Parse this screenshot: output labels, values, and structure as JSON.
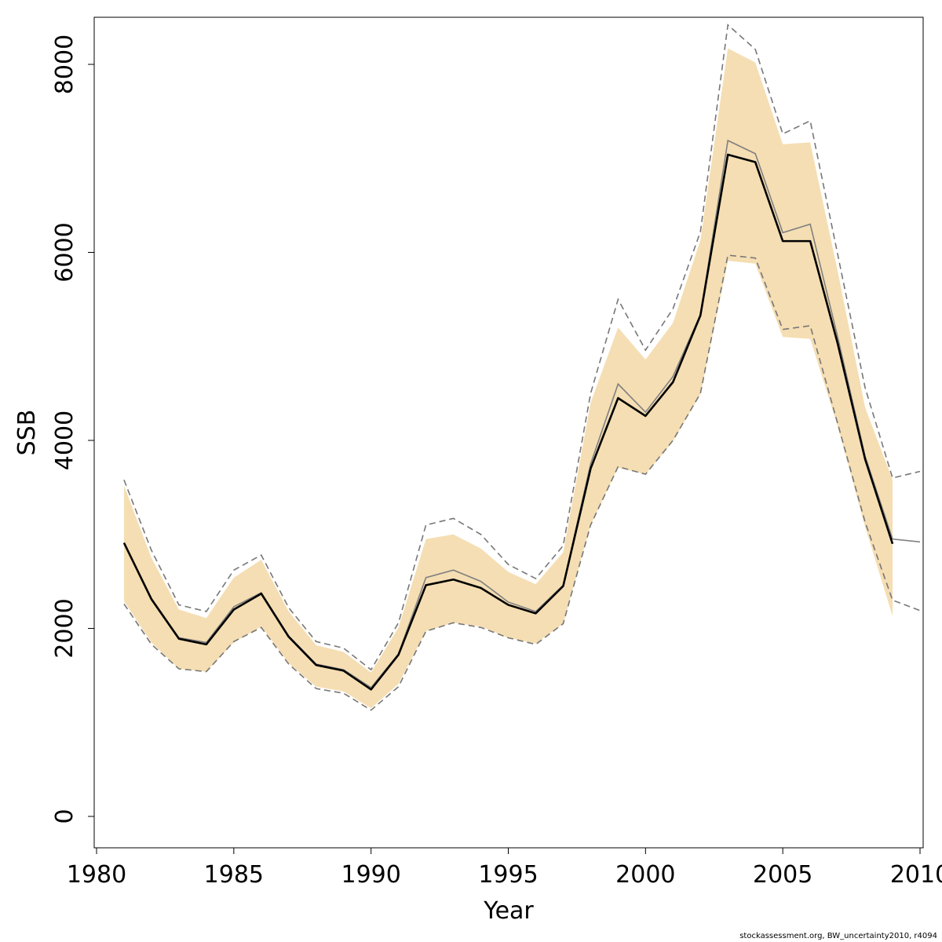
{
  "chart_data": {
    "type": "line",
    "title": "",
    "xlabel": "Year",
    "ylabel": "SSB",
    "xlim": [
      1980,
      2010
    ],
    "ylim": [
      0,
      8500
    ],
    "x_ticks": [
      1980,
      1985,
      1990,
      1995,
      2000,
      2005,
      2010
    ],
    "y_ticks": [
      0,
      2000,
      4000,
      6000,
      8000
    ],
    "x_tick_labels": [
      "1980",
      "1985",
      "1990",
      "1995",
      "2000",
      "2005",
      "2010"
    ],
    "y_tick_labels": [
      "0",
      "2000",
      "4000",
      "6000",
      "8000"
    ],
    "grid": false,
    "colors": {
      "band": "#f5deb3",
      "median": "#000000",
      "secondary": "#808080",
      "outer": "#777777"
    },
    "years": [
      1981,
      1982,
      1983,
      1984,
      1985,
      1986,
      1987,
      1988,
      1989,
      1990,
      1991,
      1992,
      1993,
      1994,
      1995,
      1996,
      1997,
      1998,
      1999,
      2000,
      2001,
      2002,
      2003,
      2004,
      2005,
      2006,
      2007,
      2008,
      2009
    ],
    "series": [
      {
        "role": "median",
        "values": [
          2910,
          2310,
          1890,
          1830,
          2200,
          2370,
          1910,
          1610,
          1550,
          1350,
          1720,
          2460,
          2520,
          2430,
          2250,
          2160,
          2450,
          3700,
          4450,
          4260,
          4620,
          5330,
          7040,
          6960,
          6120,
          6120,
          5030,
          3800,
          2900
        ]
      },
      {
        "role": "secondary",
        "values": [
          2910,
          2320,
          1900,
          1850,
          2230,
          2380,
          1920,
          1620,
          1560,
          1370,
          1730,
          2540,
          2620,
          2500,
          2280,
          2180,
          2460,
          3750,
          4600,
          4300,
          4680,
          5340,
          7190,
          7050,
          6210,
          6300,
          5100,
          3830,
          2950
        ]
      },
      {
        "role": "band_upper",
        "values": [
          3520,
          2750,
          2200,
          2110,
          2540,
          2730,
          2180,
          1820,
          1750,
          1530,
          2010,
          2950,
          3000,
          2850,
          2600,
          2470,
          2810,
          4400,
          5200,
          4860,
          5250,
          6130,
          8170,
          8020,
          7150,
          7170,
          5800,
          4350,
          3580
        ]
      },
      {
        "role": "band_lower",
        "values": [
          2290,
          1850,
          1570,
          1540,
          1850,
          2020,
          1630,
          1380,
          1330,
          1150,
          1410,
          1970,
          2060,
          2020,
          1900,
          1840,
          2050,
          3100,
          3710,
          3640,
          3990,
          4490,
          5910,
          5880,
          5100,
          5080,
          4150,
          3080,
          2130
        ]
      },
      {
        "role": "outer_upper",
        "x": [
          1981,
          1982,
          1983,
          1984,
          1985,
          1986,
          1987,
          1988,
          1989,
          1990,
          1991,
          1992,
          1993,
          1994,
          1995,
          1996,
          1997,
          1998,
          1999,
          2000,
          2001,
          2002,
          2003,
          2004,
          2005,
          2006,
          2007,
          2008,
          2009,
          2010
        ],
        "values": [
          3580,
          2830,
          2250,
          2180,
          2620,
          2780,
          2220,
          1860,
          1790,
          1560,
          2060,
          3100,
          3170,
          3000,
          2680,
          2530,
          2880,
          4500,
          5500,
          4960,
          5400,
          6220,
          8420,
          8160,
          7260,
          7400,
          5980,
          4560,
          3600,
          3670
        ]
      },
      {
        "role": "outer_lower",
        "x": [
          1981,
          1982,
          1983,
          1984,
          1985,
          1986,
          1987,
          1988,
          1989,
          1990,
          1991,
          1992,
          1993,
          1994,
          1995,
          1996,
          1997,
          1998,
          1999,
          2000,
          2001,
          2002,
          2003,
          2004,
          2005,
          2006,
          2007,
          2008,
          2009,
          2010
        ],
        "values": [
          2260,
          1830,
          1570,
          1540,
          1860,
          2010,
          1620,
          1360,
          1310,
          1130,
          1380,
          1970,
          2060,
          2010,
          1900,
          1830,
          2050,
          3100,
          3720,
          3640,
          4000,
          4500,
          5970,
          5940,
          5180,
          5220,
          4180,
          3130,
          2300,
          2190
        ]
      },
      {
        "role": "projection",
        "x": [
          2009,
          2010
        ],
        "values": [
          2950,
          2920
        ]
      }
    ]
  },
  "footer": "stockassessment.org, BW_uncertainty2010, r4094"
}
